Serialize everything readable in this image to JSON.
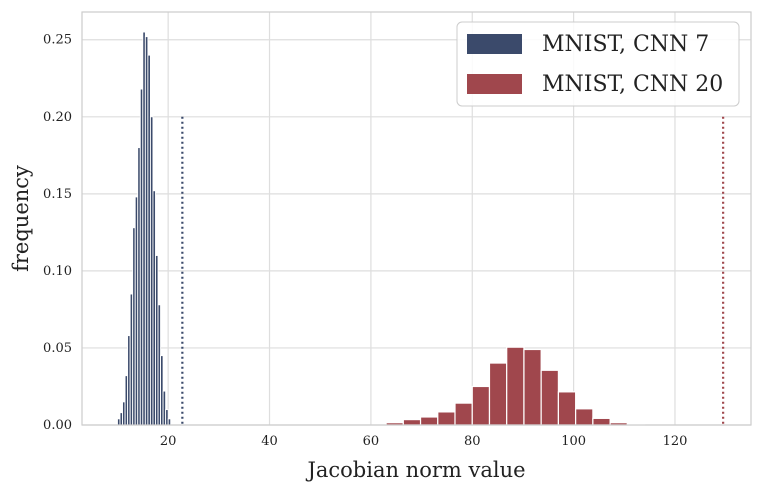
{
  "chart_data": {
    "type": "bar",
    "title": "",
    "xlabel": "Jacobian norm value",
    "ylabel": "frequency",
    "xlim": [
      3,
      135
    ],
    "ylim": [
      0,
      0.268
    ],
    "x_ticks": [
      20,
      40,
      60,
      80,
      100,
      120
    ],
    "x_tick_labels": [
      "20",
      "40",
      "60",
      "80",
      "100",
      "120"
    ],
    "y_ticks": [
      0.0,
      0.05,
      0.1,
      0.15,
      0.2,
      0.25
    ],
    "y_tick_labels": [
      "0.00",
      "0.05",
      "0.10",
      "0.15",
      "0.20",
      "0.25"
    ],
    "grid": true,
    "legend_position": "top-right",
    "series": [
      {
        "name": "MNIST, CNN 7",
        "color": "#3b4a6b",
        "bin_width": 0.5,
        "bins_start": [
          10,
          10.5,
          11,
          11.5,
          12,
          12.5,
          13,
          13.5,
          14,
          14.5,
          15,
          15.5,
          16,
          16.5,
          17,
          17.5,
          18,
          18.5,
          19,
          19.5,
          20
        ],
        "values": [
          0.004,
          0.008,
          0.015,
          0.032,
          0.058,
          0.085,
          0.128,
          0.148,
          0.18,
          0.218,
          0.255,
          0.252,
          0.24,
          0.2,
          0.152,
          0.11,
          0.078,
          0.045,
          0.022,
          0.01,
          0.004
        ],
        "threshold_x": 22.8
      },
      {
        "name": "MNIST, CNN 20",
        "color": "#a0474d",
        "bin_width": 3.4,
        "bins_start": [
          63,
          66.4,
          69.8,
          73.2,
          76.6,
          80,
          83.4,
          86.8,
          90.2,
          93.6,
          97,
          100.4,
          103.8,
          107.2,
          110.6
        ],
        "values": [
          0.0015,
          0.0035,
          0.0052,
          0.0085,
          0.0142,
          0.025,
          0.0402,
          0.0505,
          0.049,
          0.0355,
          0.0215,
          0.0105,
          0.0043,
          0.0015,
          0.0005
        ],
        "threshold_x": 129.5
      }
    ]
  }
}
